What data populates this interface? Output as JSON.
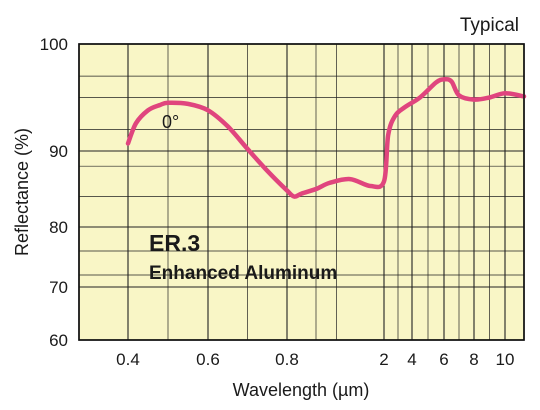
{
  "chart_data": {
    "type": "line",
    "corner_label": "Typical",
    "model": "ER.3",
    "title": "Enhanced Aluminum",
    "xlabel": "Wavelength (µm)",
    "ylabel": "Reflectance (%)",
    "x_tick_labels": [
      "0.4",
      "0.6",
      "0.8",
      "2",
      "4",
      "6",
      "8",
      "10"
    ],
    "y_tick_labels": [
      "60",
      "70",
      "80",
      "90",
      "100"
    ],
    "grid": true,
    "background_color": "#f9f6c6",
    "series": [
      {
        "name": "0°",
        "color": "#e0457e",
        "x": [
          0.4,
          0.42,
          0.45,
          0.48,
          0.5,
          0.55,
          0.6,
          0.65,
          0.7,
          0.75,
          0.8,
          0.85,
          0.9,
          1.0,
          1.2,
          1.5,
          1.8,
          2.0,
          2.3,
          2.8,
          3.5,
          4.5,
          5.5,
          6.0,
          6.5,
          7.0,
          8.0,
          9.0,
          10.0,
          11.0
        ],
        "y": [
          90.7,
          92.6,
          93.8,
          94.3,
          94.5,
          94.4,
          93.8,
          92.3,
          90.2,
          87.4,
          84.8,
          84.0,
          84.4,
          85.0,
          85.8,
          86.3,
          85.4,
          86.0,
          91.5,
          93.3,
          94.1,
          95.0,
          96.4,
          96.7,
          96.5,
          95.2,
          94.8,
          95.0,
          95.4,
          95.1
        ]
      }
    ]
  }
}
